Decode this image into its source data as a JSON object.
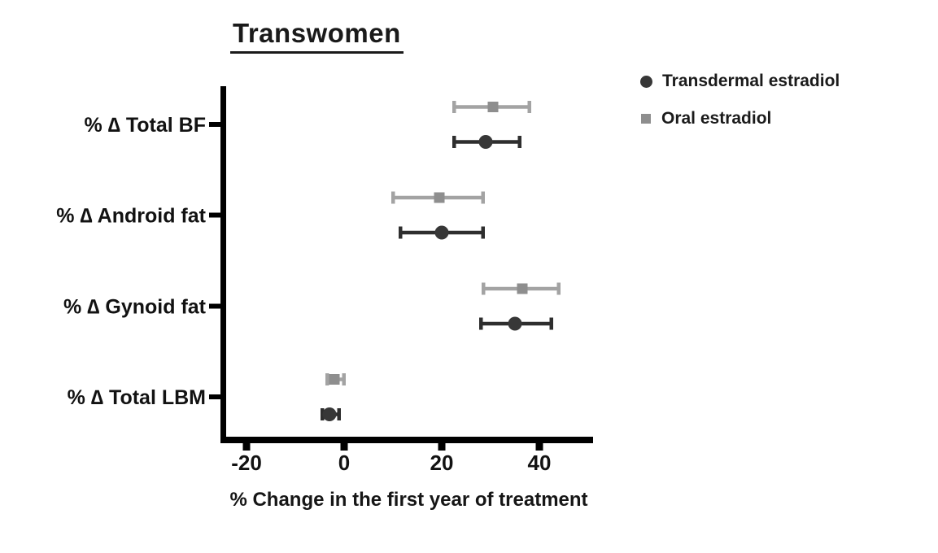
{
  "figure": {
    "title": "Transwomen",
    "xlabel": "% Change in the first year of treatment"
  },
  "legend": {
    "items": [
      {
        "label": "Transdermal estradiol",
        "marker": "circle"
      },
      {
        "label": "Oral estradiol",
        "marker": "square"
      }
    ]
  },
  "chart_data": {
    "type": "scatter",
    "subtype": "horizontal-forest-dot-plot",
    "title": "Transwomen",
    "xlabel": "% Change in the first year of treatment",
    "categories": [
      "% ∆ Total BF",
      "% ∆ Android fat",
      "% ∆ Gynoid fat",
      "% ∆ Total LBM"
    ],
    "x_ticks": [
      -20,
      0,
      20,
      40
    ],
    "xlim": [
      -25,
      51
    ],
    "grid": false,
    "legend_position": "top-right",
    "series": [
      {
        "name": "Transdermal estradiol",
        "marker": "circle",
        "color": "#373737",
        "line_color": "#2e2e2e",
        "values": [
          29,
          20,
          35,
          -3
        ],
        "err_low": [
          22.5,
          11.5,
          28,
          -4.5
        ],
        "err_high": [
          36,
          28.5,
          42.5,
          -1
        ]
      },
      {
        "name": "Oral estradiol",
        "marker": "square",
        "color": "#8e8e8e",
        "line_color": "#a3a3a3",
        "values": [
          30.5,
          19.5,
          36.5,
          -2
        ],
        "err_low": [
          22.5,
          10,
          28.5,
          -3.5
        ],
        "err_high": [
          38,
          28.5,
          44,
          0
        ]
      }
    ]
  }
}
